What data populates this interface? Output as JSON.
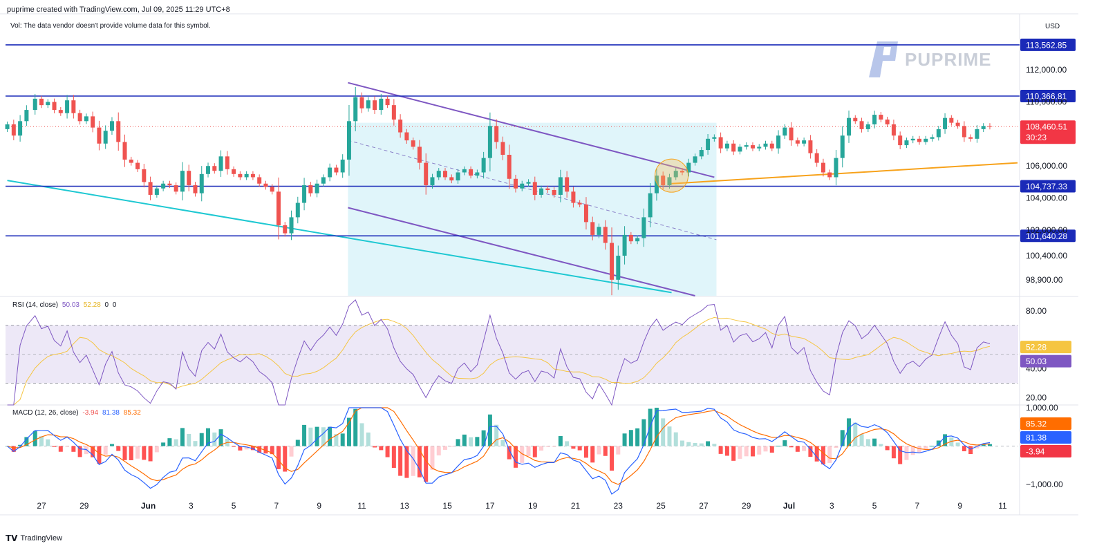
{
  "header": {
    "title": "puprime created with TradingView.com, Jul 09, 2025 11:29 UTC+8",
    "volume_note": "Vol: The data vendor doesn't provide volume data for this symbol.",
    "currency": "USD"
  },
  "watermark": {
    "text": "PUPRIME"
  },
  "footer": {
    "brand": "TradingView"
  },
  "colors": {
    "up": "#26a69a",
    "down": "#ef5350",
    "hline": "#1a2ab8",
    "channel": "#7e57c2",
    "channel_fill": "#e0f5fa",
    "cyan_line": "#1ec8d2",
    "orange_line": "#f7a21b",
    "rsi": "#7e57c2",
    "rsi_ma": "#f5c542",
    "macd": "#2962ff",
    "signal": "#ff6d00",
    "hist_up": "#26a69a",
    "hist_down": "#ff5252"
  },
  "chart_data": [
    {
      "type": "candlestick",
      "title": "",
      "ylim": [
        97900,
        115500
      ],
      "y_ticks": [
        "98,900.00",
        "100,400.00",
        "102,000.00",
        "104,000.00",
        "106,000.00",
        "108,000.00",
        "110,000.00",
        "112,000.00"
      ],
      "y_tick_values": [
        98900,
        100400,
        102000,
        104000,
        106000,
        108000,
        110000,
        112000
      ],
      "x_ticks": [
        "27",
        "29",
        "Jun",
        "3",
        "5",
        "7",
        "9",
        "11",
        "13",
        "15",
        "17",
        "19",
        "21",
        "23",
        "25",
        "27",
        "29",
        "Jul",
        "3",
        "5",
        "7",
        "9",
        "11"
      ],
      "x_tick_values": [
        0,
        2,
        5,
        7,
        9,
        11,
        13,
        15,
        17,
        19,
        21,
        23,
        25,
        27,
        29,
        31,
        33,
        35,
        37,
        39,
        41,
        43,
        45
      ],
      "x_unit": "days from May 27 2025",
      "horizontal_levels": [
        {
          "label": "113,562.85",
          "value": 113562.85
        },
        {
          "label": "110,366.81",
          "value": 110366.81
        },
        {
          "label": "104,737.33",
          "value": 104737.33
        },
        {
          "label": "101,640.28",
          "value": 101640.28
        }
      ],
      "current_price": {
        "label": "108,460.51",
        "value": 108460.51,
        "countdown": "30:23"
      },
      "trendlines": [
        {
          "name": "channel-upper",
          "from": [
            14.35,
            111200
          ],
          "to": [
            31.5,
            105300
          ]
        },
        {
          "name": "channel-lower",
          "from": [
            14.35,
            103400
          ],
          "to": [
            30.6,
            97900
          ]
        },
        {
          "name": "channel-mid",
          "from": [
            14.35,
            107600
          ],
          "to": [
            31.6,
            101400
          ]
        },
        {
          "name": "cyan-support",
          "from": [
            -1.6,
            105100
          ],
          "to": [
            29.5,
            98100
          ]
        },
        {
          "name": "orange-support",
          "from": [
            29.5,
            104900
          ],
          "to": [
            45.9,
            106200
          ]
        }
      ],
      "channel_box": {
        "x": [
          14.35,
          31.6
        ],
        "y": [
          97900,
          108700
        ]
      },
      "breakout_circle": {
        "x": 29.5,
        "y": 105400
      },
      "closes": [
        [
          -1.6,
          108600
        ],
        [
          -1.3,
          107900
        ],
        [
          -1.0,
          108800
        ],
        [
          -0.7,
          109500
        ],
        [
          -0.3,
          110200
        ],
        [
          0.0,
          109800
        ],
        [
          0.3,
          110000
        ],
        [
          0.6,
          109500
        ],
        [
          0.9,
          109300
        ],
        [
          1.2,
          110100
        ],
        [
          1.5,
          109300
        ],
        [
          1.8,
          108800
        ],
        [
          2.1,
          109100
        ],
        [
          2.4,
          108400
        ],
        [
          2.7,
          107400
        ],
        [
          3.0,
          108200
        ],
        [
          3.3,
          108800
        ],
        [
          3.6,
          107500
        ],
        [
          3.9,
          106400
        ],
        [
          4.2,
          106200
        ],
        [
          4.5,
          105800
        ],
        [
          4.8,
          105000
        ],
        [
          5.1,
          104200
        ],
        [
          5.4,
          104600
        ],
        [
          5.7,
          104900
        ],
        [
          6.0,
          104800
        ],
        [
          6.3,
          104400
        ],
        [
          6.6,
          105700
        ],
        [
          6.9,
          104800
        ],
        [
          7.2,
          104300
        ],
        [
          7.5,
          105500
        ],
        [
          7.8,
          106000
        ],
        [
          8.1,
          105700
        ],
        [
          8.4,
          106600
        ],
        [
          8.7,
          105800
        ],
        [
          9.0,
          105500
        ],
        [
          9.3,
          105300
        ],
        [
          9.6,
          105500
        ],
        [
          9.9,
          105300
        ],
        [
          10.2,
          104900
        ],
        [
          10.5,
          104700
        ],
        [
          10.8,
          104400
        ],
        [
          11.1,
          102300
        ],
        [
          11.4,
          101800
        ],
        [
          11.7,
          102800
        ],
        [
          12.0,
          103700
        ],
        [
          12.3,
          104800
        ],
        [
          12.6,
          104300
        ],
        [
          12.9,
          104900
        ],
        [
          13.2,
          105300
        ],
        [
          13.5,
          105900
        ],
        [
          13.8,
          105600
        ],
        [
          14.1,
          106400
        ],
        [
          14.4,
          108800
        ],
        [
          14.7,
          110300
        ],
        [
          15.0,
          109600
        ],
        [
          15.3,
          110100
        ],
        [
          15.6,
          109500
        ],
        [
          15.9,
          110200
        ],
        [
          16.2,
          109800
        ],
        [
          16.5,
          108900
        ],
        [
          16.8,
          108100
        ],
        [
          17.1,
          107600
        ],
        [
          17.4,
          107200
        ],
        [
          17.7,
          106200
        ],
        [
          18.0,
          104800
        ],
        [
          18.3,
          105300
        ],
        [
          18.6,
          105700
        ],
        [
          18.9,
          105300
        ],
        [
          19.2,
          105100
        ],
        [
          19.5,
          105600
        ],
        [
          19.8,
          105800
        ],
        [
          20.1,
          105400
        ],
        [
          20.4,
          105600
        ],
        [
          20.7,
          106500
        ],
        [
          21.0,
          108500
        ],
        [
          21.3,
          107500
        ],
        [
          21.6,
          106700
        ],
        [
          21.9,
          105200
        ],
        [
          22.2,
          104600
        ],
        [
          22.5,
          104900
        ],
        [
          22.8,
          105000
        ],
        [
          23.1,
          104200
        ],
        [
          23.4,
          104600
        ],
        [
          23.7,
          104500
        ],
        [
          24.0,
          104200
        ],
        [
          24.3,
          105300
        ],
        [
          24.6,
          104400
        ],
        [
          24.9,
          103700
        ],
        [
          25.2,
          103600
        ],
        [
          25.5,
          102500
        ],
        [
          25.8,
          101700
        ],
        [
          26.1,
          102200
        ],
        [
          26.4,
          101200
        ],
        [
          26.7,
          98900
        ],
        [
          27.0,
          100400
        ],
        [
          27.3,
          101700
        ],
        [
          27.6,
          101300
        ],
        [
          27.9,
          101500
        ],
        [
          28.2,
          102800
        ],
        [
          28.5,
          104300
        ],
        [
          28.8,
          105400
        ],
        [
          29.1,
          104800
        ],
        [
          29.4,
          105300
        ],
        [
          29.7,
          105700
        ],
        [
          30.0,
          105600
        ],
        [
          30.3,
          106200
        ],
        [
          30.6,
          106600
        ],
        [
          30.9,
          107000
        ],
        [
          31.2,
          107700
        ],
        [
          31.5,
          107800
        ],
        [
          31.8,
          107100
        ],
        [
          32.1,
          107400
        ],
        [
          32.4,
          106900
        ],
        [
          32.7,
          107200
        ],
        [
          33.0,
          107300
        ],
        [
          33.3,
          107100
        ],
        [
          33.6,
          107200
        ],
        [
          33.9,
          107400
        ],
        [
          34.2,
          107100
        ],
        [
          34.5,
          107900
        ],
        [
          34.8,
          108400
        ],
        [
          35.1,
          107600
        ],
        [
          35.4,
          107400
        ],
        [
          35.7,
          107600
        ],
        [
          36.0,
          106800
        ],
        [
          36.3,
          106200
        ],
        [
          36.6,
          105600
        ],
        [
          36.9,
          105300
        ],
        [
          37.2,
          106500
        ],
        [
          37.5,
          107900
        ],
        [
          37.8,
          109000
        ],
        [
          38.1,
          108800
        ],
        [
          38.4,
          108300
        ],
        [
          38.7,
          108600
        ],
        [
          39.0,
          109200
        ],
        [
          39.3,
          108900
        ],
        [
          39.6,
          108600
        ],
        [
          39.9,
          107900
        ],
        [
          40.2,
          107300
        ],
        [
          40.5,
          107600
        ],
        [
          40.8,
          107700
        ],
        [
          41.1,
          107500
        ],
        [
          41.4,
          107700
        ],
        [
          41.7,
          107800
        ],
        [
          42.0,
          108300
        ],
        [
          42.3,
          109000
        ],
        [
          42.6,
          108700
        ],
        [
          42.9,
          108500
        ],
        [
          43.2,
          107800
        ],
        [
          43.5,
          107700
        ],
        [
          43.8,
          108300
        ],
        [
          44.1,
          108500
        ],
        [
          44.4,
          108460
        ]
      ]
    },
    {
      "type": "line",
      "title": "RSI",
      "label": "RSI (14, close)",
      "values_label": [
        "50.03",
        "52.28",
        "0",
        "0"
      ],
      "last_rsi": "50.03",
      "last_ma": "52.28",
      "ylim": [
        15,
        88
      ],
      "y_ticks": [
        "80.00",
        "40.00",
        "20.00"
      ],
      "y_tick_values": [
        80,
        40,
        20
      ],
      "band": [
        30,
        70
      ],
      "midline": 50
    },
    {
      "type": "line",
      "title": "MACD",
      "label": "MACD (12, 26, close)",
      "values_label": [
        "-3.94",
        "81.38",
        "85.32"
      ],
      "last_hist": "-3.94",
      "last_macd": "81.38",
      "last_signal": "85.32",
      "ylim": [
        -1250,
        1000
      ],
      "y_ticks": [
        "1,000.00",
        "−1,000.00"
      ],
      "y_tick_values": [
        1000,
        -1000
      ]
    }
  ]
}
